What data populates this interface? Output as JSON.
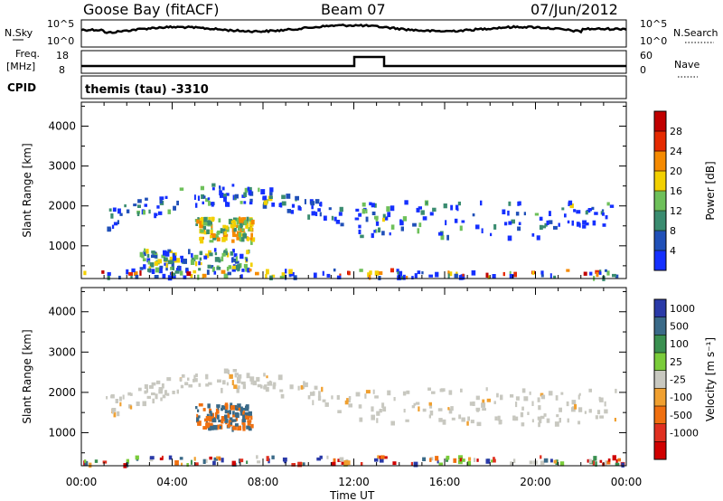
{
  "header": {
    "site": "Goose Bay (fitACF)",
    "beam": "Beam 07",
    "date": "07/Jun/2012"
  },
  "strips": {
    "nsky_label": "N.Sky",
    "nsky_ticks": [
      "10^5",
      "10^0"
    ],
    "nsearch_label": "N.Search",
    "nsearch_ticks": [
      "10^5",
      "10^0"
    ],
    "freq_label": "Freq.",
    "freq_unit": "[MHz]",
    "freq_ticks": [
      "18",
      "8"
    ],
    "nave_label": "Nave",
    "nave_ticks": [
      "60",
      "0"
    ],
    "cpid_label": "CPID",
    "cpid_value": "themis (tau) -3310"
  },
  "chart_data": [
    {
      "type": "heatmap",
      "ylabel": "Slant Range [km]",
      "xlabel": "Time UT",
      "x_ticks": [
        "00:00",
        "04:00",
        "08:00",
        "12:00",
        "16:00",
        "20:00",
        "00:00"
      ],
      "x_range_hours": [
        0,
        24
      ],
      "y_ticks": [
        1000,
        2000,
        3000,
        4000
      ],
      "y_range_km": [
        180,
        4600
      ],
      "colorbar": {
        "label": "Power [dB]",
        "ticks": [
          "4",
          "8",
          "12",
          "16",
          "20",
          "24",
          "28"
        ],
        "colors": [
          "#1530ff",
          "#2050b8",
          "#3a8c70",
          "#6ec05a",
          "#f2d000",
          "#f58a00",
          "#e52a00",
          "#c00000"
        ]
      },
      "echo_bands": [
        {
          "t": [
            1.0,
            11.8
          ],
          "range_km": [
            1300,
            2500
          ],
          "level": "8-16 dB"
        },
        {
          "t": [
            12.0,
            23.5
          ],
          "range_km": [
            1200,
            2100
          ],
          "level": "4-16 dB"
        },
        {
          "t": [
            2.5,
            7.5
          ],
          "range_km": [
            400,
            900
          ],
          "level": "4-20 dB"
        },
        {
          "t": [
            5.0,
            7.5
          ],
          "range_km": [
            1100,
            1700
          ],
          "level": "12-24 dB"
        },
        {
          "t": [
            0,
            24
          ],
          "range_km": [
            200,
            400
          ],
          "level": "4-28 dB"
        }
      ]
    },
    {
      "type": "heatmap",
      "ylabel": "Slant Range [km]",
      "xlabel": "Time UT",
      "x_ticks": [
        "00:00",
        "04:00",
        "08:00",
        "12:00",
        "16:00",
        "20:00",
        "00:00"
      ],
      "x_range_hours": [
        0,
        24
      ],
      "y_ticks": [
        1000,
        2000,
        3000,
        4000
      ],
      "y_range_km": [
        180,
        4600
      ],
      "colorbar": {
        "label": "Velocity [m s⁻¹]",
        "ticks": [
          "1000",
          "500",
          "100",
          "25",
          "-25",
          "-100",
          "-500",
          "-1000"
        ],
        "colors": [
          "#2a3aa8",
          "#3a6a88",
          "#3a9050",
          "#7acc3a",
          "#c8c8c0",
          "#f0a030",
          "#f07010",
          "#e03020",
          "#d00000"
        ]
      },
      "echo_bands": [
        {
          "t": [
            1.0,
            11.8
          ],
          "range_km": [
            1300,
            2500
          ],
          "velocity": "-25 to 25"
        },
        {
          "t": [
            12.0,
            23.5
          ],
          "range_km": [
            1200,
            2100
          ],
          "velocity": "-25 to 25"
        },
        {
          "t": [
            5.0,
            7.5
          ],
          "range_km": [
            1100,
            1700
          ],
          "velocity": "-500 to 500"
        },
        {
          "t": [
            0,
            24
          ],
          "range_km": [
            200,
            400
          ],
          "velocity": "mixed"
        }
      ]
    }
  ]
}
